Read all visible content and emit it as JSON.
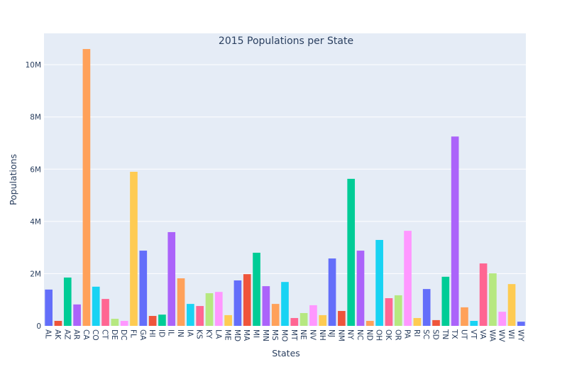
{
  "chart_data": {
    "type": "bar",
    "title": "2015 Populations per State",
    "xlabel": "States",
    "ylabel": "Populations",
    "ylim": [
      0,
      11200000
    ],
    "yticks": [
      0,
      2000000,
      4000000,
      6000000,
      8000000,
      10000000
    ],
    "ytick_labels": [
      "0",
      "2M",
      "4M",
      "6M",
      "8M",
      "10M"
    ],
    "grid": true,
    "background": "#e5ecf6",
    "colors": [
      "#636efa",
      "#EF553B",
      "#00cc96",
      "#ab63fa",
      "#FFA15A",
      "#19d3f3",
      "#FF6692",
      "#B6E880",
      "#FF97FF",
      "#FECB52"
    ],
    "categories": [
      "AL",
      "AK",
      "AZ",
      "AR",
      "CA",
      "CO",
      "CT",
      "DE",
      "DC",
      "FL",
      "GA",
      "HI",
      "ID",
      "IL",
      "IN",
      "IA",
      "KS",
      "KY",
      "LA",
      "ME",
      "MD",
      "MA",
      "MI",
      "MN",
      "MS",
      "MO",
      "MT",
      "NE",
      "NV",
      "NH",
      "NJ",
      "NM",
      "NY",
      "NC",
      "ND",
      "OH",
      "OK",
      "OR",
      "PA",
      "RI",
      "SC",
      "SD",
      "TN",
      "TX",
      "UT",
      "VT",
      "VA",
      "WA",
      "WV",
      "WI",
      "WY"
    ],
    "values": [
      1390000,
      190000,
      1850000,
      820000,
      10600000,
      1500000,
      1030000,
      270000,
      190000,
      5900000,
      2880000,
      380000,
      430000,
      3590000,
      1820000,
      840000,
      760000,
      1250000,
      1300000,
      410000,
      1740000,
      1980000,
      2800000,
      1520000,
      840000,
      1680000,
      300000,
      490000,
      790000,
      410000,
      2580000,
      570000,
      5630000,
      2880000,
      190000,
      3290000,
      1060000,
      1170000,
      3640000,
      300000,
      1410000,
      220000,
      1880000,
      7250000,
      710000,
      190000,
      2390000,
      2010000,
      540000,
      1600000,
      160000
    ]
  }
}
